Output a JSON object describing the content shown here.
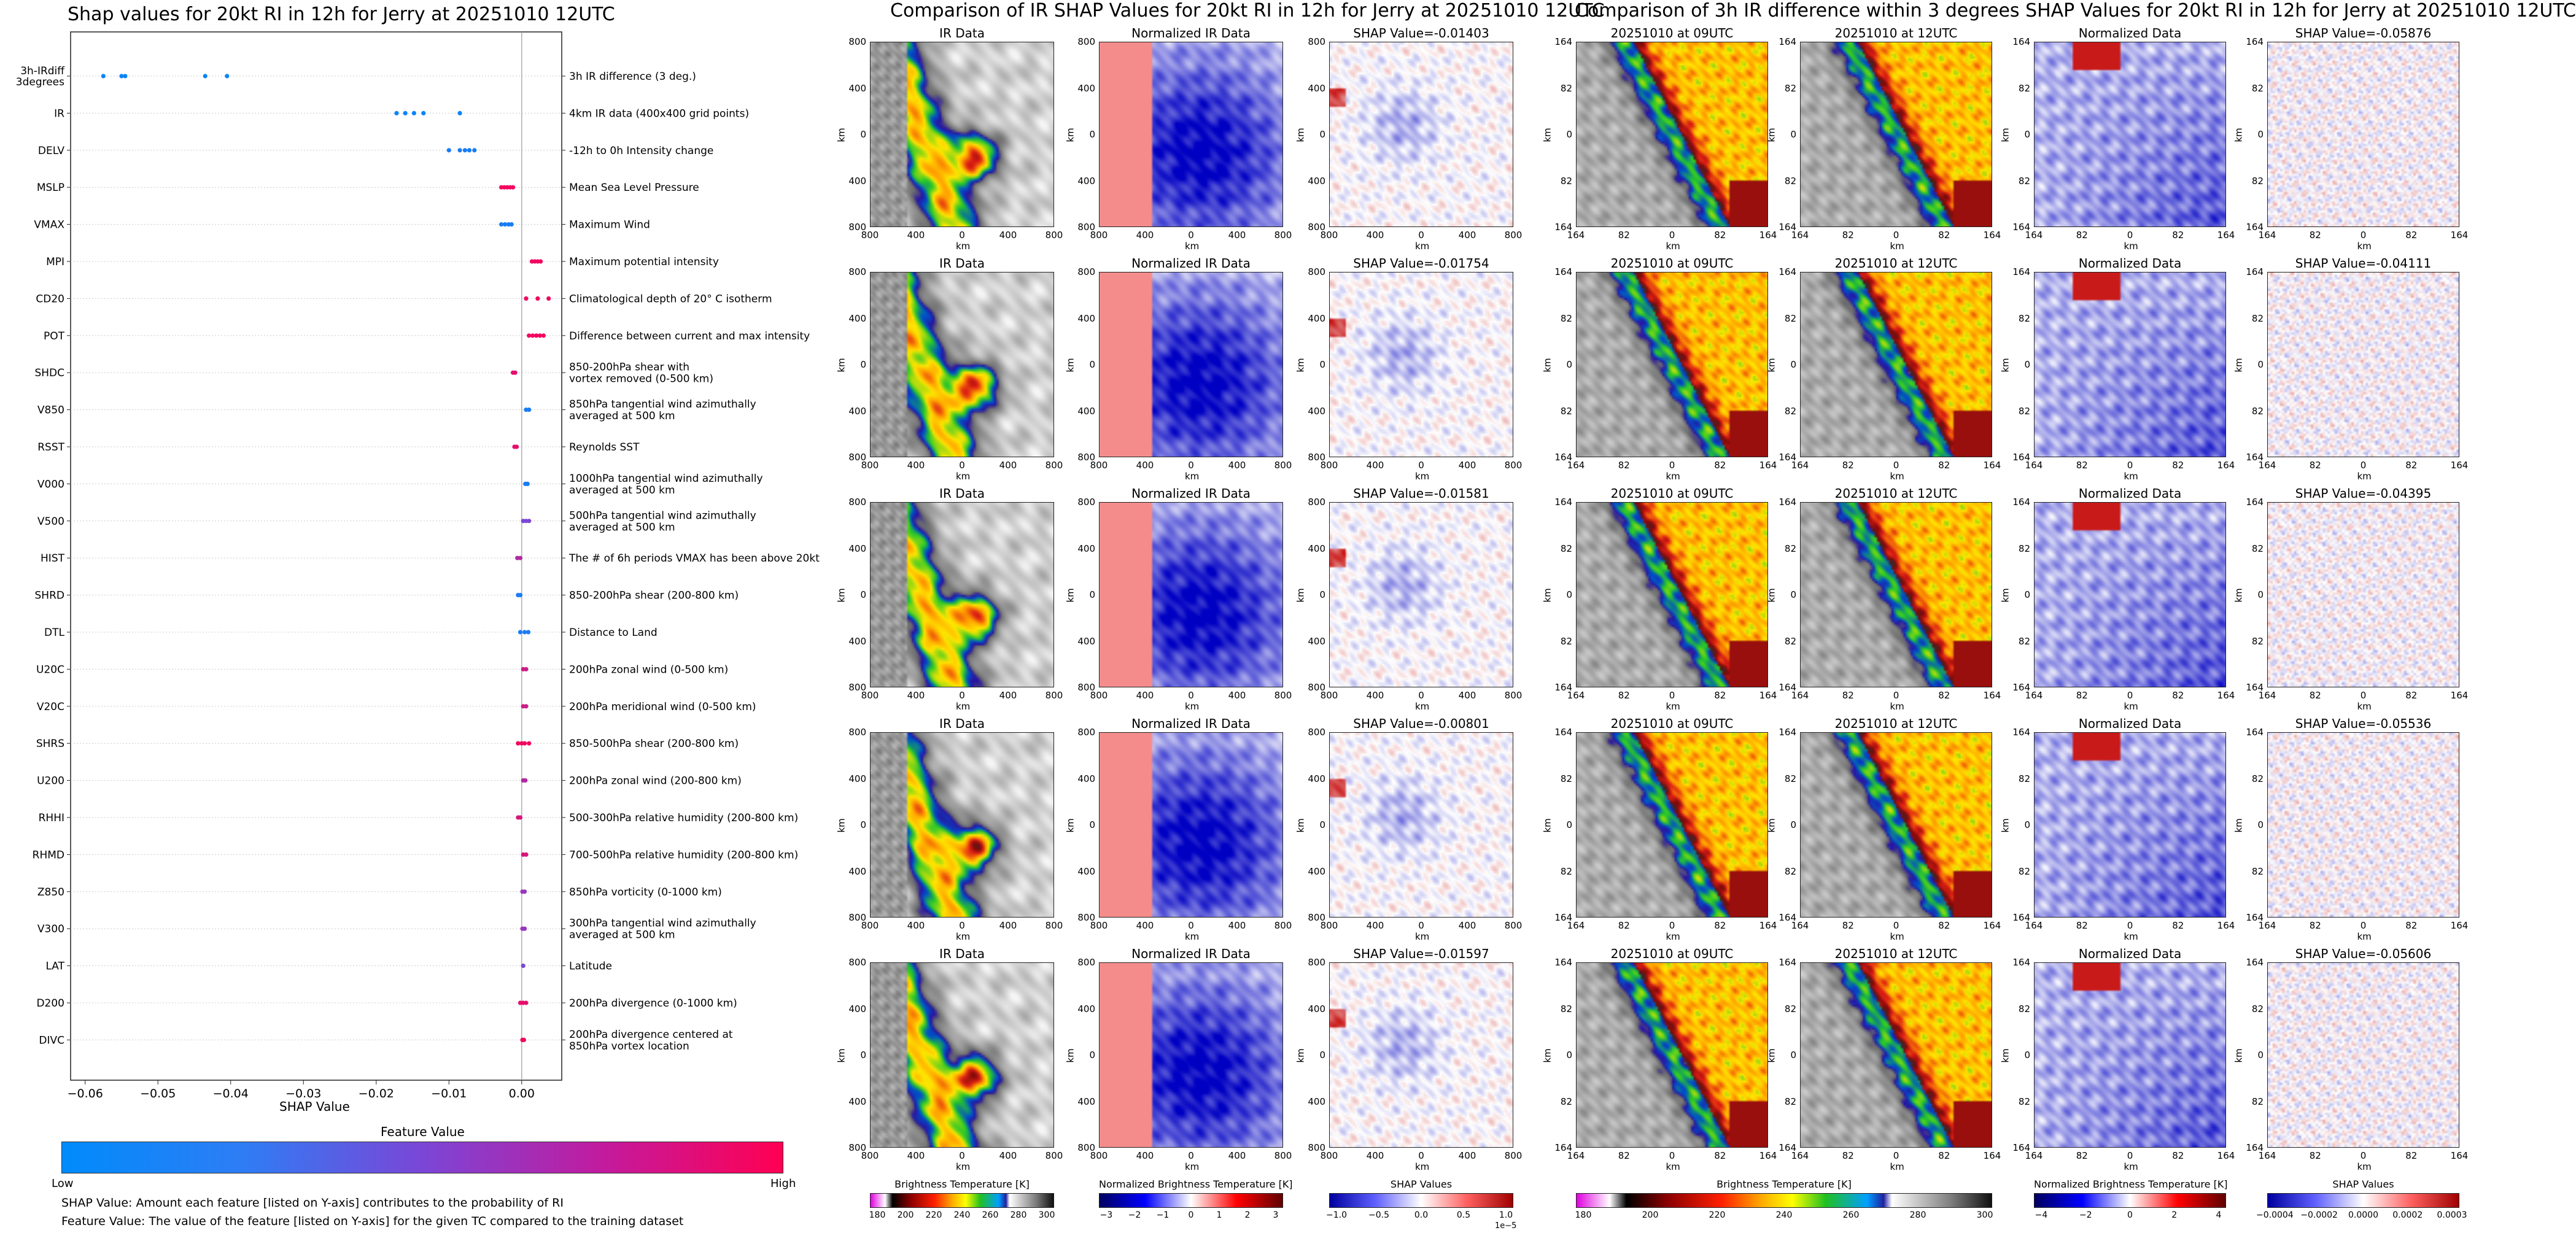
{
  "shap_summary": {
    "title": "Shap values for 20kt RI in 12h for Jerry at 20251010 12UTC",
    "xlabel": "SHAP Value",
    "colorbar_title": "Feature Value",
    "colorbar_low": "Low",
    "colorbar_high": "High",
    "note_1": "SHAP Value: Amount each feature [listed on Y-axis] contributes to the probability of RI",
    "note_2": "Feature Value: The value of the feature [listed on Y-axis] for the given TC compared to the training dataset",
    "colors": {
      "low": "#1e88ff",
      "mid": "#8c3fd0",
      "high": "#ff0055"
    }
  },
  "chart_data": [
    {
      "type": "scatter",
      "title": "Shap values for 20kt RI in 12h for Jerry at 20251010 12UTC",
      "xlabel": "SHAP Value",
      "xlim": [
        -0.062,
        0.0055
      ],
      "xticks": [
        "−0.06",
        "−0.05",
        "−0.04",
        "−0.03",
        "−0.02",
        "−0.01",
        "0.00"
      ],
      "xtick_values": [
        -0.06,
        -0.05,
        -0.04,
        -0.03,
        -0.02,
        -0.01,
        0.0
      ],
      "features": [
        {
          "name": "3h-IRdiff\n3degrees",
          "desc": "3h IR difference (3 deg.)",
          "x": [
            -0.0575,
            -0.055,
            -0.0545,
            -0.0435,
            -0.0405
          ],
          "f": 0.05
        },
        {
          "name": "IR",
          "desc": "4km IR data (400x400 grid points)",
          "x": [
            -0.0172,
            -0.016,
            -0.0148,
            -0.0135,
            -0.0085
          ],
          "f": 0.05
        },
        {
          "name": "DELV",
          "desc": "-12h to 0h Intensity change",
          "x": [
            -0.01,
            -0.0085,
            -0.0078,
            -0.0072,
            -0.0065
          ],
          "f": 0.1
        },
        {
          "name": "MSLP",
          "desc": "Mean Sea Level Pressure",
          "x": [
            -0.0028,
            -0.0024,
            -0.002,
            -0.0016,
            -0.0012
          ],
          "f": 0.95
        },
        {
          "name": "VMAX",
          "desc": "Maximum Wind",
          "x": [
            -0.0028,
            -0.0023,
            -0.0018,
            -0.0014
          ],
          "f": 0.1
        },
        {
          "name": "MPI",
          "desc": "Maximum potential intensity",
          "x": [
            0.0014,
            0.0018,
            0.0022,
            0.0026
          ],
          "f": 0.95
        },
        {
          "name": "CD20",
          "desc": "Climatological depth of 20° C isotherm",
          "x": [
            0.0006,
            0.0022,
            0.0037
          ],
          "f": 0.95
        },
        {
          "name": "POT",
          "desc": "Difference between current and max intensity",
          "x": [
            0.001,
            0.0015,
            0.002,
            0.0025,
            0.003
          ],
          "f": 0.95
        },
        {
          "name": "SHDC",
          "desc": "850-200hPa shear with\nvortex removed (0-500 km)",
          "x": [
            -0.0012,
            -0.0009
          ],
          "f": 0.9
        },
        {
          "name": "V850",
          "desc": "850hPa tangential wind azimuthally\naveraged at 500 km",
          "x": [
            0.0006,
            0.001
          ],
          "f": 0.1
        },
        {
          "name": "RSST",
          "desc": "Reynolds SST",
          "x": [
            -0.001,
            -0.0007
          ],
          "f": 0.9
        },
        {
          "name": "V000",
          "desc": "1000hPa tangential wind azimuthally\naveraged at 500 km",
          "x": [
            0.0005,
            0.0008
          ],
          "f": 0.1
        },
        {
          "name": "V500",
          "desc": "500hPa tangential wind azimuthally\naveraged at 500 km",
          "x": [
            0.0002,
            0.0006,
            0.001
          ],
          "f": 0.5
        },
        {
          "name": "HIST",
          "desc": "The # of 6h periods VMAX has been above 20kt",
          "x": [
            -0.0006,
            -0.0002
          ],
          "f": 0.7
        },
        {
          "name": "SHRD",
          "desc": "850-200hPa shear (200-800 km)",
          "x": [
            -0.0005,
            -0.0002
          ],
          "f": 0.1
        },
        {
          "name": "DTL",
          "desc": "Distance to Land",
          "x": [
            -0.0002,
            0.0004,
            0.0009
          ],
          "f": 0.1
        },
        {
          "name": "U20C",
          "desc": "200hPa zonal wind (0-500 km)",
          "x": [
            0.0002,
            0.0006
          ],
          "f": 0.8
        },
        {
          "name": "V20C",
          "desc": "200hPa meridional wind (0-500 km)",
          "x": [
            0.0002,
            0.0006
          ],
          "f": 0.8
        },
        {
          "name": "SHRS",
          "desc": "850-500hPa shear (200-800 km)",
          "x": [
            -0.0005,
            0.0,
            0.0004,
            0.001
          ],
          "f": 0.95
        },
        {
          "name": "U200",
          "desc": "200hPa zonal wind (200-800 km)",
          "x": [
            0.0002,
            0.0005
          ],
          "f": 0.7
        },
        {
          "name": "RHHI",
          "desc": "500-300hPa relative humidity (200-800 km)",
          "x": [
            -0.0005,
            -0.0002
          ],
          "f": 0.85
        },
        {
          "name": "RHMD",
          "desc": "700-500hPa relative humidity (200-800 km)",
          "x": [
            0.0002,
            0.0006
          ],
          "f": 0.85
        },
        {
          "name": "Z850",
          "desc": "850hPa vorticity (0-1000 km)",
          "x": [
            0.0001,
            0.0004
          ],
          "f": 0.6
        },
        {
          "name": "V300",
          "desc": "300hPa tangential wind azimuthally\naveraged at 500 km",
          "x": [
            0.0001,
            0.0004
          ],
          "f": 0.6
        },
        {
          "name": "LAT",
          "desc": "Latitude",
          "x": [
            0.0002
          ],
          "f": 0.5
        },
        {
          "name": "D200",
          "desc": "200hPa divergence (0-1000 km)",
          "x": [
            -0.0002,
            0.0002,
            0.0006
          ],
          "f": 0.9
        },
        {
          "name": "DIVC",
          "desc": "200hPa divergence centered at\n850hPa vortex location",
          "x": [
            0.0001,
            0.0003
          ],
          "f": 0.95
        }
      ]
    }
  ],
  "ir_panel": {
    "suptitle": "Comparison of IR SHAP Values for 20kt RI in 12h for Jerry at 20251010 12UTC",
    "col_titles": [
      "IR Data",
      "Normalized IR Data"
    ],
    "shap_titles": [
      "SHAP Value=-0.01403",
      "SHAP Value=-0.01754",
      "SHAP Value=-0.01581",
      "SHAP Value=-0.00801",
      "SHAP Value=-0.01597"
    ],
    "xticks": [
      "800",
      "400",
      "0",
      "400",
      "800"
    ],
    "yticks": [
      "800",
      "400",
      "0",
      "400",
      "800"
    ],
    "axis_label": "km",
    "cbar_titles": [
      "Brightness Temperature [K]",
      "Normalized Brightness Temperature [K]",
      "SHAP Values"
    ],
    "cbar_ticks": [
      [
        "180",
        "200",
        "220",
        "240",
        "260",
        "280",
        "300"
      ],
      [
        "−3",
        "−2",
        "−1",
        "0",
        "1",
        "2",
        "3"
      ],
      [
        "−1.0",
        "−0.5",
        "0.0",
        "0.5",
        "1.0"
      ]
    ],
    "cbar_exp": "1e−5"
  },
  "diff_panel": {
    "suptitle": "Comparison of 3h IR difference within 3 degrees SHAP Values for 20kt RI in 12h for Jerry at 20251010 12UTC",
    "col_titles": [
      "20251010 at 09UTC",
      "20251010 at 12UTC",
      "Normalized Data"
    ],
    "shap_titles": [
      "SHAP Value=-0.05876",
      "SHAP Value=-0.04111",
      "SHAP Value=-0.04395",
      "SHAP Value=-0.05536",
      "SHAP Value=-0.05606"
    ],
    "xticks": [
      "164",
      "82",
      "0",
      "82",
      "164"
    ],
    "yticks": [
      "164",
      "82",
      "0",
      "82",
      "164"
    ],
    "axis_label": "km",
    "cbar_titles": [
      "Brightness Temperature [K]",
      "Normalized Brightness Temperature [K]",
      "SHAP Values"
    ],
    "cbar_ticks": [
      [
        "180",
        "200",
        "220",
        "240",
        "260",
        "280",
        "300"
      ],
      [
        "−4",
        "−2",
        "0",
        "2",
        "4"
      ],
      [
        "−0.0004",
        "−0.0002",
        "0.0000",
        "0.0002",
        "0.0003"
      ]
    ]
  }
}
